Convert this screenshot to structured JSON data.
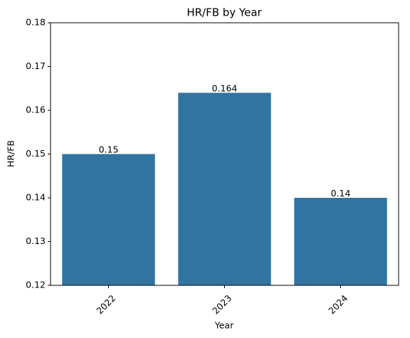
{
  "chart_data": {
    "type": "bar",
    "title": "HR/FB by Year",
    "x_label": "Year",
    "y_label": "HR/FB",
    "categories": [
      "2022",
      "2023",
      "2024"
    ],
    "values": [
      0.15,
      0.164,
      0.14
    ],
    "color": "#3274a1",
    "ylim": [
      0.12,
      0.18
    ],
    "yticks": [
      0.12,
      0.13,
      0.14,
      0.15,
      0.16,
      0.17,
      0.18
    ],
    "grid": false
  }
}
